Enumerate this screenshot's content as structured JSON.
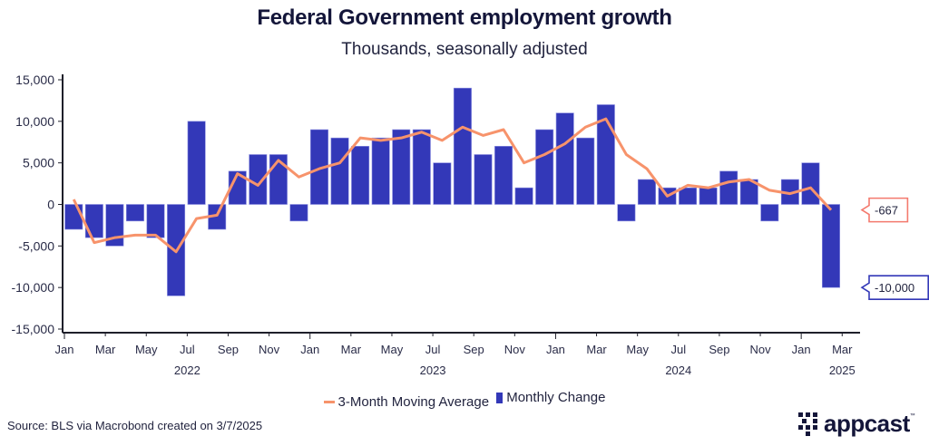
{
  "chart_data": {
    "type": "bar",
    "title": "Federal Government employment growth",
    "subtitle": "Thousands, seasonally adjusted",
    "xlabel": "",
    "ylabel": "",
    "ylim": [
      -15000,
      15000
    ],
    "yticks": [
      15000,
      10000,
      5000,
      0,
      -5000,
      -10000,
      -15000
    ],
    "ytick_labels": [
      "15,000",
      "10,000",
      "5,000",
      "0",
      "-5,000",
      "-10,000",
      "-15,000"
    ],
    "x": [
      "2022-01",
      "2022-02",
      "2022-03",
      "2022-04",
      "2022-05",
      "2022-06",
      "2022-07",
      "2022-08",
      "2022-09",
      "2022-10",
      "2022-11",
      "2022-12",
      "2023-01",
      "2023-02",
      "2023-03",
      "2023-04",
      "2023-05",
      "2023-06",
      "2023-07",
      "2023-08",
      "2023-09",
      "2023-10",
      "2023-11",
      "2023-12",
      "2024-01",
      "2024-02",
      "2024-03",
      "2024-04",
      "2024-05",
      "2024-06",
      "2024-07",
      "2024-08",
      "2024-09",
      "2024-10",
      "2024-11",
      "2024-12",
      "2025-01",
      "2025-02"
    ],
    "xtick_labels": [
      "Jan",
      "Mar",
      "May",
      "Jul",
      "Sep",
      "Nov",
      "Jan",
      "Mar",
      "May",
      "Jul",
      "Sep",
      "Nov",
      "Jan",
      "Mar",
      "May",
      "Jul",
      "Sep",
      "Nov",
      "Jan",
      "Mar"
    ],
    "year_labels": [
      {
        "label": "2022",
        "at_month_index": 6
      },
      {
        "label": "2023",
        "at_month_index": 18
      },
      {
        "label": "2024",
        "at_month_index": 30
      },
      {
        "label": "2025",
        "at_month_index": 38
      }
    ],
    "series": [
      {
        "name": "Monthly Change",
        "type": "bar",
        "color": "#3338b8",
        "values": [
          -3000,
          -4000,
          -5000,
          -2000,
          -4000,
          -11000,
          10000,
          -3000,
          4000,
          6000,
          6000,
          -2000,
          9000,
          8000,
          7000,
          8000,
          9000,
          9000,
          5000,
          14000,
          6000,
          7000,
          2000,
          9000,
          11000,
          8000,
          12000,
          -2000,
          3000,
          2000,
          2000,
          2000,
          4000,
          3000,
          -2000,
          3000,
          5000,
          -10000
        ],
        "last_value_label": "-10,000"
      },
      {
        "name": "3-Month Moving Average",
        "type": "line",
        "color": "#f7936b",
        "values": [
          600,
          -4600,
          -4000,
          -3700,
          -3700,
          -5700,
          -1700,
          -1300,
          3700,
          2300,
          5300,
          3300,
          4300,
          5000,
          8000,
          7700,
          8000,
          8700,
          7700,
          9300,
          8300,
          9000,
          5000,
          6000,
          7300,
          9300,
          10300,
          6000,
          4300,
          1000,
          2300,
          2000,
          2700,
          3000,
          1700,
          1300,
          2000,
          -667
        ],
        "last_value_label": "-667"
      }
    ],
    "legend": {
      "placement": "bottom-center",
      "entries": [
        "3-Month Moving Average",
        "Monthly Change"
      ]
    },
    "grid": false
  },
  "footer": {
    "source": "Source: BLS via Macrobond created on 3/7/2025",
    "logo_text": "appcast",
    "logo_tm": "™"
  }
}
